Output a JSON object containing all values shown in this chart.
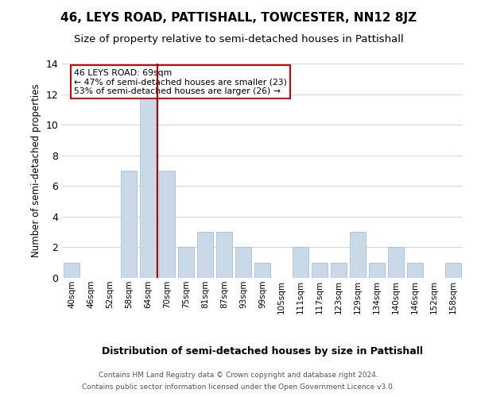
{
  "title": "46, LEYS ROAD, PATTISHALL, TOWCESTER, NN12 8JZ",
  "subtitle": "Size of property relative to semi-detached houses in Pattishall",
  "xlabel": "Distribution of semi-detached houses by size in Pattishall",
  "ylabel": "Number of semi-detached properties",
  "categories": [
    "40sqm",
    "46sqm",
    "52sqm",
    "58sqm",
    "64sqm",
    "70sqm",
    "75sqm",
    "81sqm",
    "87sqm",
    "93sqm",
    "99sqm",
    "105sqm",
    "111sqm",
    "117sqm",
    "123sqm",
    "129sqm",
    "134sqm",
    "140sqm",
    "146sqm",
    "152sqm",
    "158sqm"
  ],
  "values": [
    1,
    0,
    0,
    7,
    12,
    7,
    2,
    3,
    3,
    2,
    1,
    0,
    2,
    1,
    1,
    3,
    1,
    2,
    1,
    0,
    1
  ],
  "bar_color": "#c9d9e8",
  "bar_edge_color": "#a8bfd0",
  "vline_color": "#aa0000",
  "annotation_title": "46 LEYS ROAD: 69sqm",
  "annotation_line1": "← 47% of semi-detached houses are smaller (23)",
  "annotation_line2": "53% of semi-detached houses are larger (26) →",
  "annotation_box_color": "#ffffff",
  "annotation_box_edgecolor": "#cc0000",
  "footer1": "Contains HM Land Registry data © Crown copyright and database right 2024.",
  "footer2": "Contains public sector information licensed under the Open Government Licence v3.0.",
  "ylim": [
    0,
    14
  ],
  "yticks": [
    0,
    2,
    4,
    6,
    8,
    10,
    12,
    14
  ],
  "bg_color": "#ffffff",
  "grid_color": "#d0d8e0",
  "title_fontsize": 11,
  "subtitle_fontsize": 9.5
}
